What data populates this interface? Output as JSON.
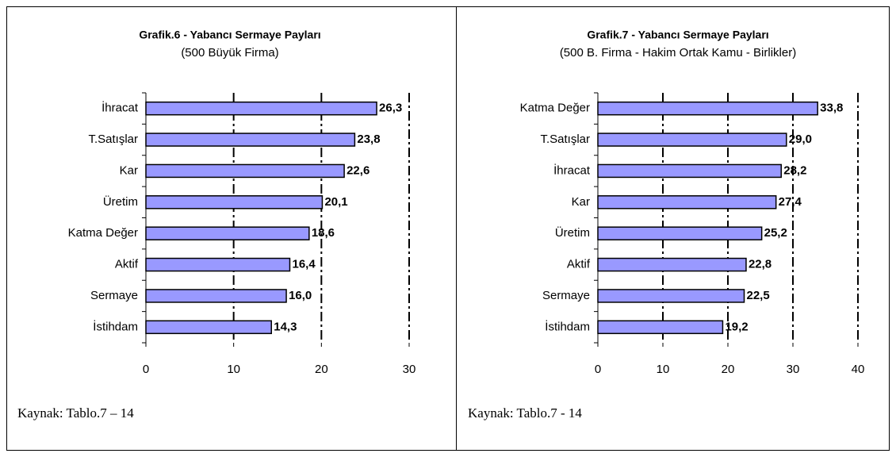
{
  "chart_data": [
    {
      "type": "barh",
      "title": "Grafik.6 - Yabancı Sermaye Payları",
      "subtitle": "(500 Büyük Firma)",
      "categories": [
        "İhracat",
        "T.Satışlar",
        "Kar",
        "Üretim",
        "Katma Değer",
        "Aktif",
        "Sermaye",
        "İstihdam"
      ],
      "values": [
        26.3,
        23.8,
        22.6,
        20.1,
        18.6,
        16.4,
        16.0,
        14.3
      ],
      "value_labels": [
        "26,3",
        "23,8",
        "22,6",
        "20,1",
        "18,6",
        "16,4",
        "16,0",
        "14,3"
      ],
      "color": "#9999ff",
      "xlim": [
        0,
        30
      ],
      "xticks": [
        0,
        10,
        20,
        30
      ],
      "grid": true,
      "source": "Kaynak: Tablo.7 – 14"
    },
    {
      "type": "barh",
      "title": "Grafik.7 - Yabancı Sermaye Payları",
      "subtitle": "(500 B. Firma - Hakim Ortak Kamu - Birlikler)",
      "categories": [
        "Katma Değer",
        "T.Satışlar",
        "İhracat",
        "Kar",
        "Üretim",
        "Aktif",
        "Sermaye",
        "İstihdam"
      ],
      "values": [
        33.8,
        29.0,
        28.2,
        27.4,
        25.2,
        22.8,
        22.5,
        19.2
      ],
      "value_labels": [
        "33,8",
        "29,0",
        "28,2",
        "27,4",
        "25,2",
        "22,8",
        "22,5",
        "19,2"
      ],
      "color": "#9999ff",
      "xlim": [
        0,
        40
      ],
      "xticks": [
        0,
        10,
        20,
        30,
        40
      ],
      "grid": true,
      "source": "Kaynak: Tablo.7 - 14"
    }
  ]
}
